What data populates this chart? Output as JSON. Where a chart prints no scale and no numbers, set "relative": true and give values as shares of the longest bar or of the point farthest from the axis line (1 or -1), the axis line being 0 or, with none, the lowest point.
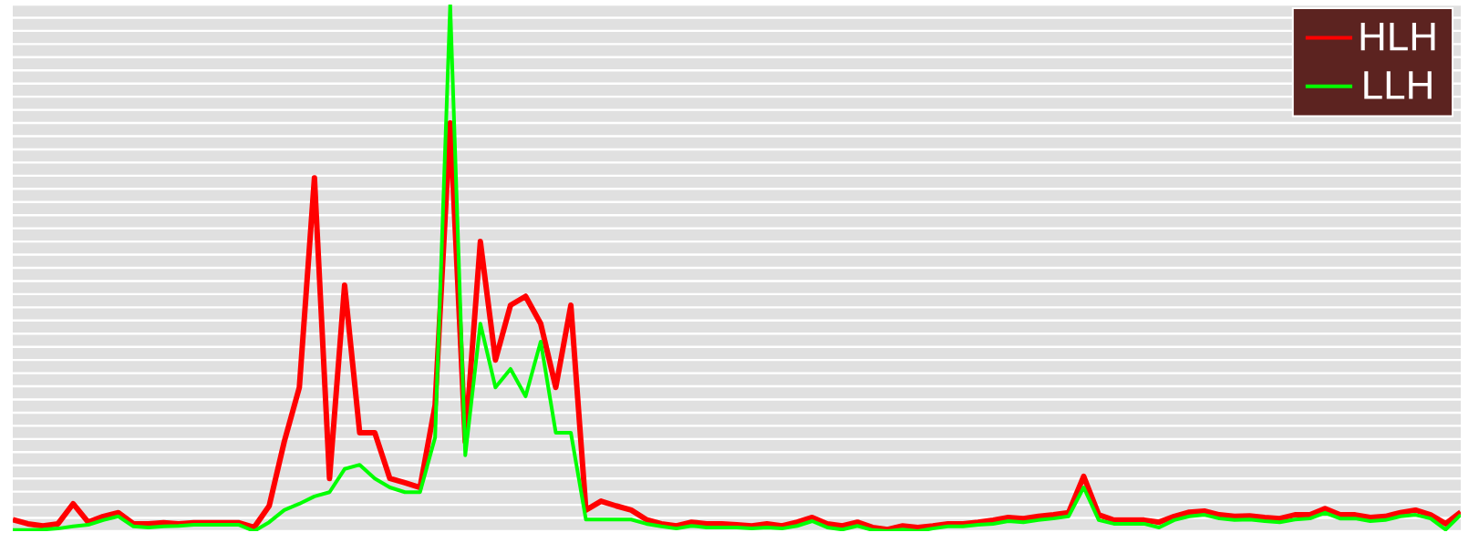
{
  "chart_data": {
    "type": "line",
    "relative": true,
    "grid": "y",
    "legend": "top right",
    "marker": "none",
    "line_style": "solid",
    "categories": [
      null,
      null,
      null,
      null,
      null,
      null,
      null,
      null,
      null,
      null,
      null,
      null,
      null,
      null,
      null,
      null,
      null,
      null,
      null,
      null,
      null,
      null,
      null,
      null,
      null,
      null,
      null,
      null,
      null,
      null,
      null,
      null,
      null,
      null,
      null,
      null,
      null,
      null,
      null,
      null,
      null,
      null,
      null,
      null,
      null,
      null,
      null,
      null,
      null,
      null,
      null,
      null,
      null,
      null,
      null,
      null,
      null,
      null,
      null,
      null,
      null,
      null,
      null,
      null,
      null,
      null,
      null,
      null,
      null,
      null,
      null,
      null,
      null,
      null,
      null,
      null,
      null,
      null,
      null,
      null,
      null,
      null,
      null,
      null,
      null,
      null,
      null,
      null,
      null,
      null,
      null,
      null,
      null,
      null,
      null,
      null,
      null
    ],
    "series": [
      {
        "name": "HLH",
        "color": "#ff0000",
        "values": [
          0.022,
          0.014,
          0.01,
          0.014,
          0.052,
          0.017,
          0.028,
          0.035,
          0.014,
          0.014,
          0.016,
          0.014,
          0.016,
          0.016,
          0.016,
          0.016,
          0.007,
          0.048,
          0.17,
          0.273,
          0.671,
          0.1,
          0.467,
          0.187,
          0.187,
          0.1,
          0.092,
          0.083,
          0.239,
          0.775,
          0.17,
          0.55,
          0.325,
          0.429,
          0.446,
          0.394,
          0.273,
          0.429,
          0.04,
          0.057,
          0.048,
          0.04,
          0.022,
          0.014,
          0.01,
          0.017,
          0.014,
          0.014,
          0.012,
          0.01,
          0.014,
          0.01,
          0.017,
          0.026,
          0.014,
          0.01,
          0.017,
          0.007,
          0.003,
          0.01,
          0.007,
          0.01,
          0.014,
          0.014,
          0.017,
          0.021,
          0.026,
          0.024,
          0.028,
          0.031,
          0.035,
          0.104,
          0.031,
          0.021,
          0.021,
          0.021,
          0.017,
          0.028,
          0.036,
          0.038,
          0.031,
          0.028,
          0.029,
          0.026,
          0.024,
          0.031,
          0.031,
          0.043,
          0.031,
          0.031,
          0.026,
          0.028,
          0.035,
          0.04,
          0.031,
          0.014,
          0.036
        ]
      },
      {
        "name": "LLH",
        "color": "#00ff00",
        "values": [
          0.002,
          0.002,
          0.003,
          0.005,
          0.009,
          0.012,
          0.021,
          0.028,
          0.009,
          0.007,
          0.009,
          0.01,
          0.012,
          0.012,
          0.012,
          0.012,
          0.0,
          0.017,
          0.04,
          0.052,
          0.066,
          0.074,
          0.118,
          0.126,
          0.1,
          0.083,
          0.074,
          0.074,
          0.178,
          1,
          0.144,
          0.394,
          0.273,
          0.308,
          0.256,
          0.36,
          0.187,
          0.187,
          0.022,
          0.022,
          0.022,
          0.022,
          0.014,
          0.009,
          0.005,
          0.01,
          0.007,
          0.007,
          0.007,
          0.005,
          0.007,
          0.005,
          0.01,
          0.019,
          0.007,
          0.003,
          0.01,
          0.002,
          0.0,
          0.003,
          0.0,
          0.005,
          0.009,
          0.009,
          0.012,
          0.014,
          0.019,
          0.017,
          0.021,
          0.024,
          0.028,
          0.083,
          0.021,
          0.014,
          0.014,
          0.014,
          0.007,
          0.021,
          0.028,
          0.031,
          0.024,
          0.021,
          0.022,
          0.019,
          0.017,
          0.022,
          0.024,
          0.035,
          0.024,
          0.024,
          0.019,
          0.021,
          0.028,
          0.031,
          0.024,
          0.003,
          0.031
        ]
      }
    ]
  }
}
